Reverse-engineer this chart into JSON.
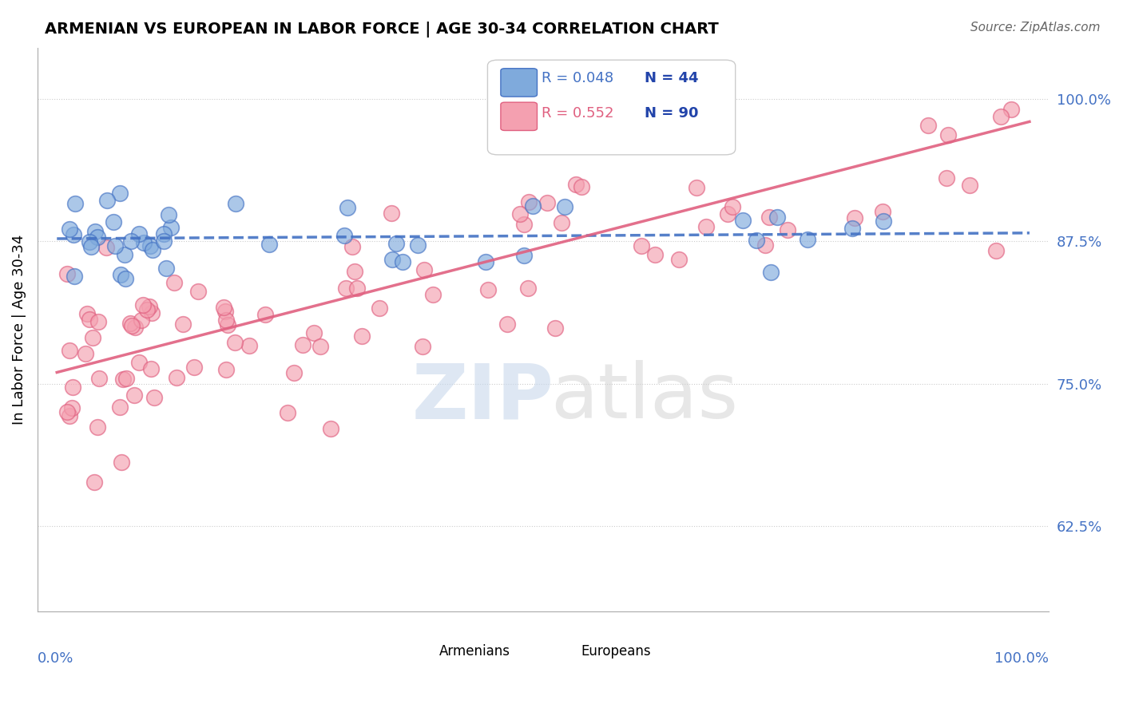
{
  "title": "ARMENIAN VS EUROPEAN IN LABOR FORCE | AGE 30-34 CORRELATION CHART",
  "source": "Source: ZipAtlas.com",
  "ylabel": "In Labor Force | Age 30-34",
  "xlim": [
    0.0,
    1.0
  ],
  "ylim": [
    0.55,
    1.045
  ],
  "ytick_labels": [
    "62.5%",
    "75.0%",
    "87.5%",
    "100.0%"
  ],
  "ytick_values": [
    0.625,
    0.75,
    0.875,
    1.0
  ],
  "legend_r_armenian": "R = 0.048",
  "legend_n_armenian": "N = 44",
  "legend_r_european": "R = 0.552",
  "legend_n_european": "N = 90",
  "color_armenian": "#7faadc",
  "color_european": "#f4a0b0",
  "color_line_armenian": "#4472c4",
  "color_line_european": "#e06080"
}
